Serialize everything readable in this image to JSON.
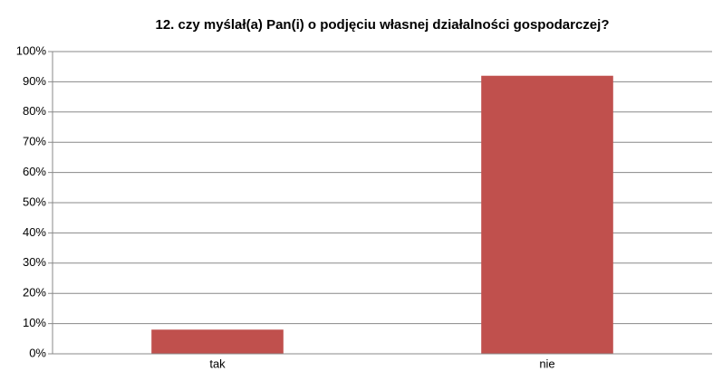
{
  "chart_data": {
    "type": "bar",
    "title": "12. czy myślał(a) Pan(i) o podjęciu własnej działalności gospodarczej?",
    "categories": [
      "tak",
      "nie"
    ],
    "values": [
      8,
      92
    ],
    "color": "#c0504d",
    "ylim": [
      0,
      100
    ],
    "yticks": [
      {
        "value": 0,
        "label": "0%"
      },
      {
        "value": 10,
        "label": "10%"
      },
      {
        "value": 20,
        "label": "20%"
      },
      {
        "value": 30,
        "label": "30%"
      },
      {
        "value": 40,
        "label": "40%"
      },
      {
        "value": 50,
        "label": "50%"
      },
      {
        "value": 60,
        "label": "60%"
      },
      {
        "value": 70,
        "label": "70%"
      },
      {
        "value": 80,
        "label": "80%"
      },
      {
        "value": 90,
        "label": "90%"
      },
      {
        "value": 100,
        "label": "100%"
      }
    ],
    "grid": true
  }
}
